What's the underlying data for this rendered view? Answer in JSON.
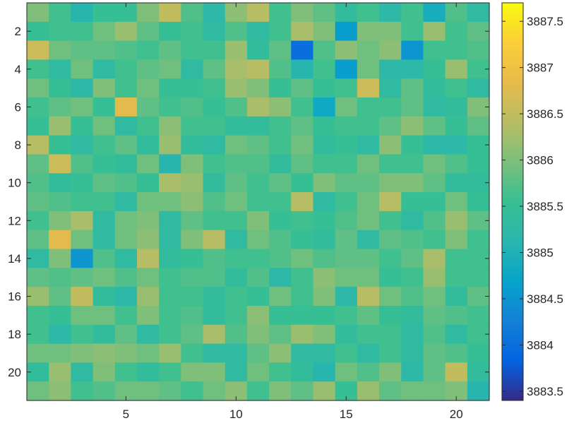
{
  "chart_data": {
    "type": "heatmap",
    "title": "",
    "xlabel": "",
    "ylabel": "",
    "xlim": [
      0.5,
      21.5
    ],
    "ylim": [
      0.5,
      21.5
    ],
    "x_reversed": false,
    "y_reversed": true,
    "x_ticks": [
      5,
      10,
      15,
      20
    ],
    "y_ticks": [
      2,
      4,
      6,
      8,
      10,
      12,
      14,
      16,
      18,
      20
    ],
    "colorbar": {
      "range": [
        3883.4,
        3887.7
      ],
      "ticks": [
        3883.5,
        3884,
        3884.5,
        3885,
        3885.5,
        3886,
        3886.5,
        3887,
        3887.5
      ],
      "tick_labels": [
        "3883.5",
        "3884",
        "3884.5",
        "3885",
        "3885.5",
        "3886",
        "3886.5",
        "3887",
        "3887.5"
      ],
      "colormap": "parula"
    },
    "grid": false,
    "values": [
      [
        3886.0,
        3885.6,
        3885.1,
        3885.5,
        3885.5,
        3886.0,
        3886.5,
        3885.7,
        3885.2,
        3886.1,
        3886.4,
        3885.6,
        3886.0,
        3885.8,
        3885.4,
        3885.6,
        3885.2,
        3885.6,
        3884.9,
        3885.7,
        3885.3
      ],
      [
        3885.5,
        3885.6,
        3885.6,
        3885.9,
        3886.2,
        3885.8,
        3885.5,
        3885.6,
        3885.3,
        3885.7,
        3885.3,
        3885.6,
        3886.3,
        3886.0,
        3884.6,
        3886.0,
        3886.0,
        3885.6,
        3886.2,
        3885.6,
        3885.8
      ],
      [
        3886.6,
        3885.9,
        3885.8,
        3885.8,
        3885.7,
        3885.6,
        3885.8,
        3885.6,
        3885.6,
        3886.2,
        3885.4,
        3885.8,
        3884.0,
        3885.7,
        3886.1,
        3885.9,
        3886.1,
        3884.5,
        3885.6,
        3885.6,
        3885.7
      ],
      [
        3885.6,
        3885.3,
        3885.9,
        3885.3,
        3885.6,
        3885.8,
        3885.9,
        3885.3,
        3885.8,
        3886.3,
        3886.4,
        3885.7,
        3885.1,
        3885.6,
        3884.6,
        3885.9,
        3885.2,
        3885.2,
        3885.5,
        3886.2,
        3885.6
      ],
      [
        3885.9,
        3885.5,
        3885.2,
        3886.0,
        3885.6,
        3885.9,
        3885.5,
        3885.5,
        3885.6,
        3886.2,
        3886.0,
        3885.5,
        3885.8,
        3885.5,
        3885.6,
        3886.6,
        3885.3,
        3885.8,
        3885.4,
        3885.6,
        3885.3
      ],
      [
        3885.6,
        3885.8,
        3885.9,
        3885.5,
        3886.8,
        3885.8,
        3885.6,
        3885.7,
        3885.5,
        3885.7,
        3886.3,
        3886.1,
        3885.6,
        3884.8,
        3885.9,
        3885.6,
        3885.6,
        3885.8,
        3885.3,
        3885.4,
        3886.0
      ],
      [
        3885.5,
        3886.2,
        3885.5,
        3885.9,
        3885.3,
        3885.6,
        3886.1,
        3885.6,
        3885.6,
        3885.4,
        3885.4,
        3885.6,
        3885.8,
        3885.5,
        3885.6,
        3885.6,
        3885.8,
        3886.1,
        3885.8,
        3885.5,
        3885.8
      ],
      [
        3886.4,
        3885.5,
        3885.3,
        3885.6,
        3885.8,
        3885.4,
        3886.2,
        3885.4,
        3885.3,
        3885.9,
        3885.8,
        3885.6,
        3885.9,
        3885.4,
        3885.5,
        3885.3,
        3886.1,
        3885.5,
        3885.2,
        3885.2,
        3885.5
      ],
      [
        3885.8,
        3886.6,
        3885.7,
        3885.5,
        3885.4,
        3885.9,
        3885.1,
        3886.0,
        3885.6,
        3885.7,
        3885.7,
        3885.4,
        3885.8,
        3885.6,
        3885.6,
        3885.9,
        3885.6,
        3885.6,
        3885.9,
        3885.7,
        3885.5
      ],
      [
        3885.7,
        3885.4,
        3885.5,
        3885.8,
        3885.7,
        3885.5,
        3886.3,
        3886.2,
        3885.4,
        3885.8,
        3885.6,
        3885.8,
        3885.5,
        3886.0,
        3885.8,
        3885.8,
        3886.0,
        3886.0,
        3885.8,
        3885.4,
        3885.4
      ],
      [
        3885.8,
        3885.7,
        3885.6,
        3885.6,
        3885.3,
        3885.9,
        3885.9,
        3886.1,
        3885.7,
        3885.9,
        3885.6,
        3885.6,
        3886.4,
        3885.3,
        3885.6,
        3885.9,
        3886.4,
        3885.5,
        3885.5,
        3885.9,
        3885.5
      ],
      [
        3885.6,
        3886.0,
        3886.3,
        3885.3,
        3885.9,
        3886.0,
        3885.3,
        3885.8,
        3885.6,
        3885.6,
        3886.0,
        3885.5,
        3885.6,
        3885.5,
        3885.7,
        3885.9,
        3885.6,
        3885.3,
        3885.7,
        3886.2,
        3885.8
      ],
      [
        3885.8,
        3886.8,
        3885.9,
        3885.3,
        3885.9,
        3886.1,
        3885.3,
        3886.0,
        3886.4,
        3885.3,
        3885.9,
        3885.7,
        3885.5,
        3885.4,
        3885.8,
        3885.3,
        3885.8,
        3885.7,
        3885.6,
        3886.0,
        3885.6
      ],
      [
        3885.3,
        3886.0,
        3884.5,
        3885.7,
        3885.3,
        3886.4,
        3885.4,
        3885.5,
        3885.7,
        3885.6,
        3885.6,
        3885.7,
        3885.9,
        3885.7,
        3885.8,
        3885.8,
        3885.6,
        3885.8,
        3886.3,
        3885.6,
        3885.6
      ],
      [
        3885.8,
        3885.7,
        3885.8,
        3885.9,
        3885.7,
        3885.9,
        3885.6,
        3885.7,
        3885.7,
        3885.4,
        3885.7,
        3885.2,
        3885.6,
        3886.1,
        3885.9,
        3885.9,
        3885.5,
        3885.6,
        3886.2,
        3885.6,
        3885.6
      ],
      [
        3886.2,
        3885.8,
        3886.5,
        3885.4,
        3885.2,
        3886.2,
        3885.6,
        3885.6,
        3885.4,
        3885.6,
        3885.5,
        3885.9,
        3885.6,
        3886.0,
        3885.2,
        3886.4,
        3885.9,
        3885.7,
        3885.9,
        3885.4,
        3885.8
      ],
      [
        3885.6,
        3885.5,
        3885.9,
        3885.9,
        3885.6,
        3886.0,
        3885.6,
        3885.7,
        3885.4,
        3885.6,
        3886.1,
        3885.5,
        3885.5,
        3885.5,
        3885.6,
        3885.8,
        3885.5,
        3885.4,
        3885.8,
        3885.7,
        3885.6
      ],
      [
        3885.6,
        3885.2,
        3885.6,
        3885.4,
        3885.8,
        3885.3,
        3885.6,
        3885.8,
        3886.3,
        3885.7,
        3886.0,
        3885.8,
        3886.2,
        3886.0,
        3885.4,
        3885.6,
        3885.6,
        3885.3,
        3885.7,
        3885.3,
        3885.6
      ],
      [
        3885.9,
        3885.9,
        3886.0,
        3886.1,
        3886.0,
        3885.9,
        3886.2,
        3885.6,
        3885.3,
        3885.3,
        3885.8,
        3886.1,
        3885.3,
        3885.3,
        3885.6,
        3885.3,
        3885.6,
        3885.3,
        3885.8,
        3885.7,
        3885.5
      ],
      [
        3885.4,
        3886.2,
        3885.3,
        3886.0,
        3885.6,
        3885.4,
        3885.6,
        3886.0,
        3886.0,
        3885.3,
        3885.9,
        3885.6,
        3885.4,
        3885.1,
        3885.9,
        3885.7,
        3886.0,
        3885.2,
        3885.8,
        3886.5,
        3885.4
      ],
      [
        3885.9,
        3886.1,
        3885.6,
        3885.7,
        3885.9,
        3885.9,
        3885.8,
        3885.6,
        3885.9,
        3886.1,
        3885.6,
        3886.0,
        3885.8,
        3886.2,
        3885.5,
        3886.2,
        3885.8,
        3885.9,
        3885.9,
        3886.0,
        3885.1
      ]
    ]
  }
}
